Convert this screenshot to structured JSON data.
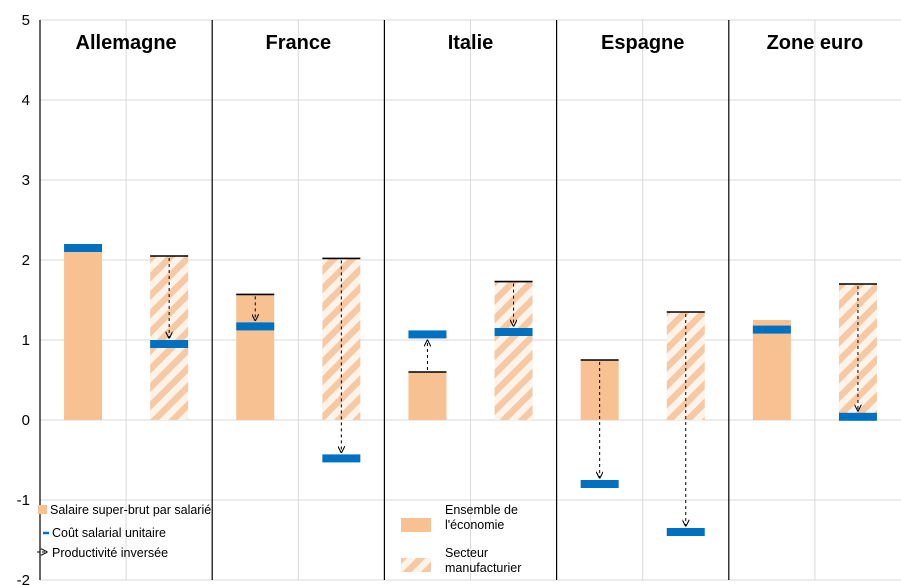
{
  "chart_data": {
    "type": "bar",
    "ylim": [
      -2,
      5
    ],
    "yticks": [
      "5",
      "4",
      "3",
      "2",
      "1",
      "0",
      "-1",
      "-2"
    ],
    "grid": true,
    "groups": [
      "Allemagne",
      "France",
      "Italie",
      "Espagne",
      "Zone euro"
    ],
    "bar_kinds": [
      "Ensemble de l'économie",
      "Secteur manufacturier"
    ],
    "series": [
      {
        "name": "Salaire super-brut par salarié",
        "values": [
          [
            2.1,
            2.05
          ],
          [
            1.57,
            2.02
          ],
          [
            0.6,
            1.73
          ],
          [
            0.75,
            1.35
          ],
          [
            1.25,
            1.7
          ]
        ]
      },
      {
        "name": "Coût salarial unitaire",
        "values": [
          [
            2.15,
            0.95
          ],
          [
            1.17,
            -0.48
          ],
          [
            1.07,
            1.1
          ],
          [
            -0.8,
            -1.4
          ],
          [
            1.13,
            0.04
          ]
        ]
      }
    ],
    "arrows_label": "Productivité inversée",
    "legend_left": [
      "Salaire super-brut par salarié",
      "Coût salarial unitaire",
      "Productivité inversée"
    ],
    "legend_right": [
      "Ensemble de l'économie",
      "Secteur manufacturier"
    ],
    "legend_right_lines": [
      [
        "Ensemble de",
        "l'économie"
      ],
      [
        "Secteur",
        "manufacturier"
      ]
    ],
    "colors": {
      "salaire": "#f8c191",
      "cout": "#0070c0",
      "grid": "#d9d9d9"
    }
  }
}
